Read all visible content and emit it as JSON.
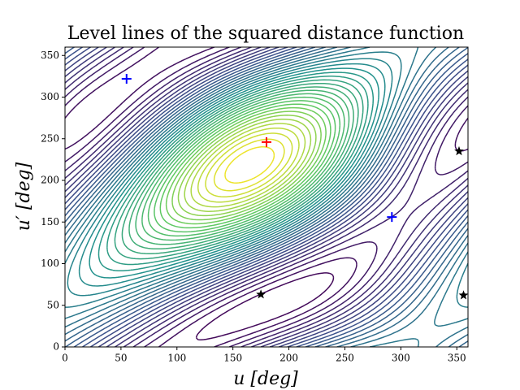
{
  "chart_data": {
    "type": "contour",
    "title": "Level lines of the squared distance function",
    "xlabel": "u [deg]",
    "ylabel": "u′ [deg]",
    "xlim": [
      0,
      360
    ],
    "ylim": [
      0,
      360
    ],
    "xticks": [
      0,
      50,
      100,
      150,
      200,
      250,
      300,
      350
    ],
    "yticks": [
      0,
      50,
      100,
      150,
      200,
      250,
      300,
      350
    ],
    "series": [
      {
        "color": "#0000ff",
        "marker": "plus",
        "x": [
          55,
          292
        ],
        "y": [
          322,
          156
        ]
      },
      {
        "color": "#ff0000",
        "marker": "plus",
        "x": [
          180
        ],
        "y": [
          246
        ]
      },
      {
        "color": "#000000",
        "marker": "star",
        "x": [
          175,
          352,
          356
        ],
        "y": [
          63,
          235,
          62
        ]
      }
    ]
  }
}
